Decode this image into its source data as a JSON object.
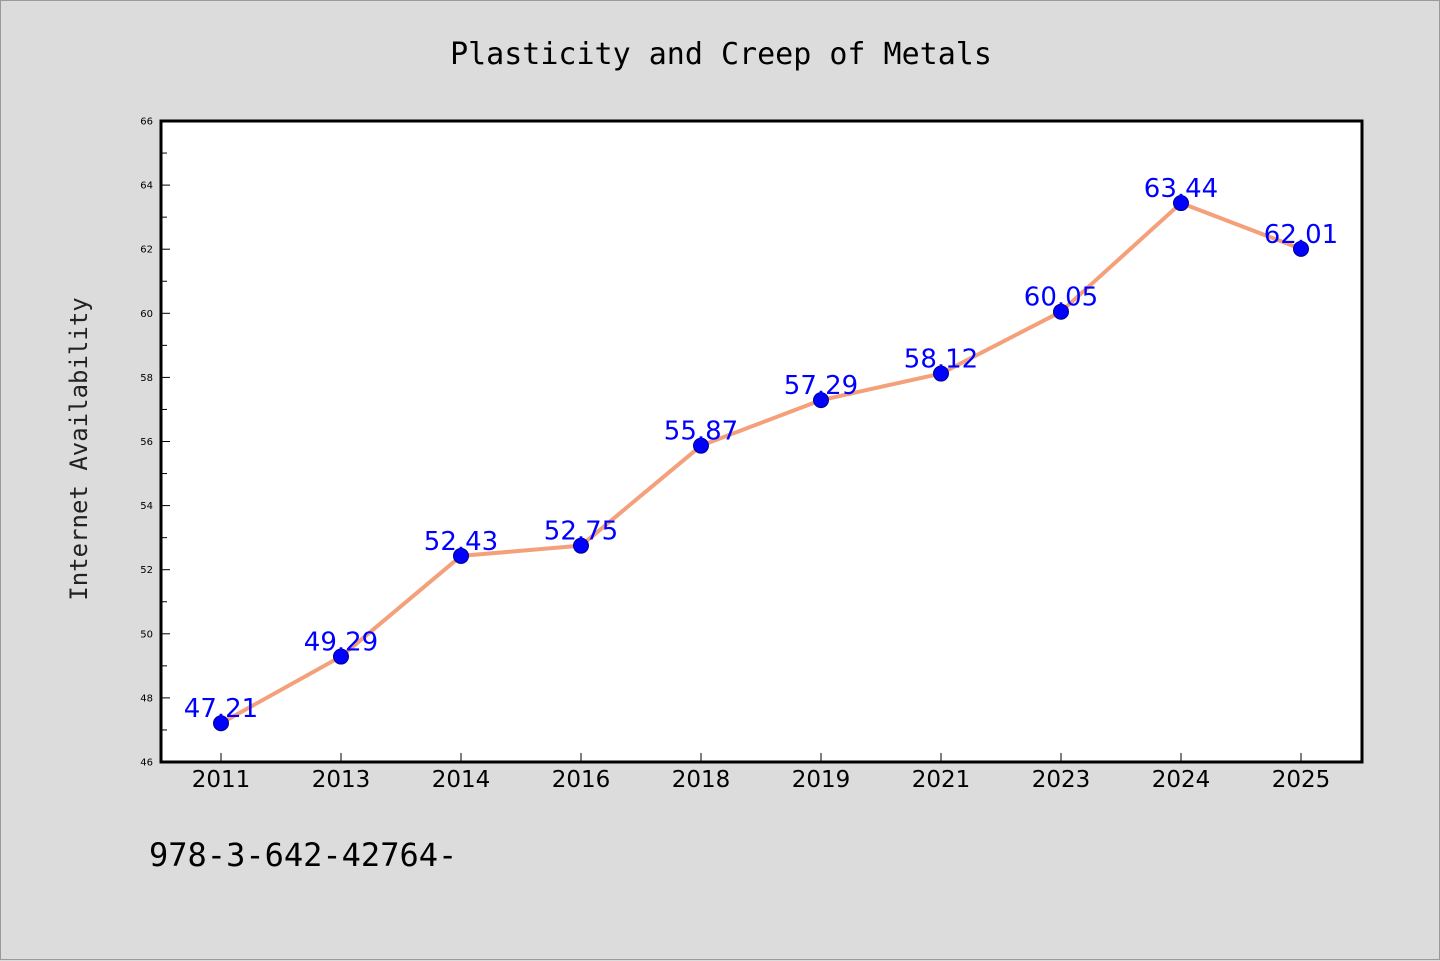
{
  "chart_data": {
    "type": "line",
    "title": "Plasticity and Creep of Metals",
    "xlabel": "",
    "ylabel": "Internet Availability",
    "categories": [
      "2011",
      "2013",
      "2014",
      "2016",
      "2018",
      "2019",
      "2021",
      "2023",
      "2024",
      "2025"
    ],
    "series": [
      {
        "values": [
          47.21,
          49.29,
          52.43,
          52.75,
          55.87,
          57.29,
          58.12,
          60.05,
          63.44,
          62.01
        ],
        "data_labels": [
          "47.21",
          "49.29",
          "52.43",
          "52.75",
          "55.87",
          "57.29",
          "58.12",
          "60.05",
          "63.44",
          "62.01"
        ]
      }
    ],
    "ylim": [
      46,
      66
    ],
    "yticks": [
      "46",
      "48",
      "50",
      "52",
      "54",
      "56",
      "58",
      "60",
      "62",
      "64",
      "66"
    ],
    "grid": false,
    "legend": "none",
    "footnote": "978-3-642-42764-",
    "colors": {
      "line": "#f4a07a",
      "marker": "#0000ff",
      "data_label": "#0000ff",
      "plot_background": "#ffffff",
      "figure_background": "#dcdcdc"
    }
  }
}
